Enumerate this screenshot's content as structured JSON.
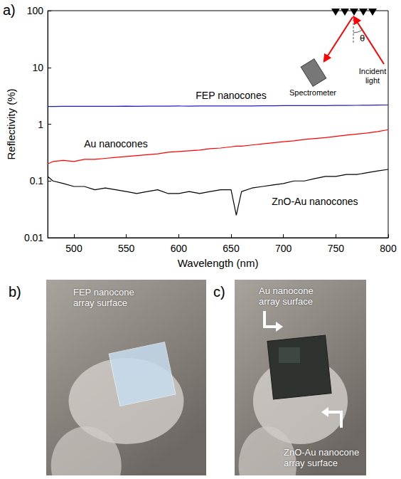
{
  "chart_data": {
    "type": "line",
    "panel": "a)",
    "x_label": "Wavelength (nm)",
    "y_label": "Reflectivity (%)",
    "log": "y",
    "grid": false,
    "xlim": [
      475,
      800
    ],
    "xticks": [
      500,
      550,
      600,
      650,
      700,
      750,
      800
    ],
    "ylim": [
      0.01,
      100
    ],
    "yticks": [
      0.01,
      0.1,
      1,
      10,
      100
    ],
    "x": [
      475,
      480,
      490,
      500,
      510,
      520,
      530,
      540,
      550,
      560,
      570,
      580,
      590,
      600,
      610,
      620,
      630,
      640,
      650,
      655,
      660,
      670,
      680,
      690,
      700,
      710,
      720,
      730,
      740,
      750,
      760,
      770,
      780,
      790,
      800
    ],
    "series": [
      {
        "name": "FEP nanocones",
        "color": "#1c1cc0",
        "line_style": "solid",
        "values": [
          2.05,
          2.05,
          2.06,
          2.06,
          2.07,
          2.06,
          2.07,
          2.07,
          2.08,
          2.07,
          2.08,
          2.08,
          2.08,
          2.09,
          2.08,
          2.09,
          2.09,
          2.1,
          2.1,
          2.1,
          2.1,
          2.1,
          2.11,
          2.11,
          2.12,
          2.12,
          2.12,
          2.13,
          2.13,
          2.14,
          2.14,
          2.15,
          2.16,
          2.17,
          2.18
        ]
      },
      {
        "name": "Au nanocones",
        "color": "#ff0000",
        "line_style": "solid",
        "values": [
          0.2,
          0.22,
          0.23,
          0.22,
          0.24,
          0.24,
          0.25,
          0.26,
          0.27,
          0.28,
          0.29,
          0.3,
          0.32,
          0.33,
          0.34,
          0.35,
          0.37,
          0.38,
          0.4,
          0.41,
          0.41,
          0.43,
          0.45,
          0.47,
          0.49,
          0.51,
          0.54,
          0.56,
          0.58,
          0.61,
          0.64,
          0.67,
          0.7,
          0.74,
          0.8
        ]
      },
      {
        "name": "ZnO-Au nanocones",
        "color": "#000000",
        "line_style": "solid",
        "values": [
          0.12,
          0.1,
          0.09,
          0.08,
          0.08,
          0.07,
          0.075,
          0.07,
          0.065,
          0.06,
          0.065,
          0.07,
          0.06,
          0.06,
          0.065,
          0.06,
          0.065,
          0.07,
          0.07,
          0.025,
          0.065,
          0.075,
          0.08,
          0.085,
          0.09,
          0.1,
          0.1,
          0.11,
          0.12,
          0.12,
          0.13,
          0.13,
          0.14,
          0.15,
          0.16
        ]
      }
    ]
  },
  "inset": {
    "source_label": "Incident light",
    "detector_label": "Spectrometer",
    "angle_label": "θ"
  },
  "photos": [
    {
      "panel": "b)",
      "labels": [
        "FEP nanocone array surface"
      ]
    },
    {
      "panel": "c)",
      "labels": [
        "Au nanocone array surface",
        "ZnO-Au nanocone array surface"
      ]
    }
  ]
}
